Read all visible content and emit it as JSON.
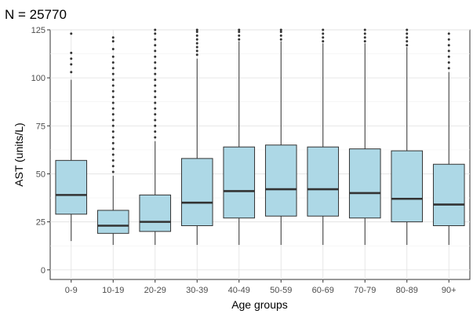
{
  "chart_data": {
    "type": "boxplot",
    "title": "N = 25770",
    "xlabel": "Age groups",
    "ylabel": "AST (units/L)",
    "ylim": [
      -5,
      125
    ],
    "yticks": [
      0,
      25,
      50,
      75,
      100,
      125
    ],
    "grid": true,
    "theme": "bw",
    "box_fill": "#add8e6",
    "box_stroke": "#333333",
    "outlier_color": "#333333",
    "categories": [
      "0-9",
      "10-19",
      "20-29",
      "30-39",
      "40-49",
      "50-59",
      "60-69",
      "70-79",
      "80-89",
      "90+"
    ],
    "boxes": [
      {
        "category": "0-9",
        "whisker_low": 15,
        "q1": 29,
        "median": 39,
        "q3": 57,
        "whisker_high": 99,
        "outliers": [
          103,
          107,
          110,
          113,
          123
        ]
      },
      {
        "category": "10-19",
        "whisker_low": 13,
        "q1": 19,
        "median": 23,
        "q3": 31,
        "whisker_high": 49,
        "outliers": [
          51,
          54,
          57,
          60,
          63,
          66,
          69,
          72,
          75,
          78,
          81,
          84,
          87,
          90,
          93,
          96,
          99,
          102,
          105,
          108,
          111,
          115,
          119,
          121
        ]
      },
      {
        "category": "20-29",
        "whisker_low": 13,
        "q1": 20,
        "median": 25,
        "q3": 39,
        "whisker_high": 67,
        "outliers": [
          69,
          72,
          75,
          78,
          81,
          84,
          87,
          90,
          93,
          96,
          99,
          102,
          105,
          108,
          111,
          114,
          117,
          120,
          123,
          125
        ]
      },
      {
        "category": "30-39",
        "whisker_low": 13,
        "q1": 23,
        "median": 35,
        "q3": 58,
        "whisker_high": 110,
        "outliers": [
          112,
          114,
          116,
          118,
          120,
          122,
          124,
          125
        ]
      },
      {
        "category": "40-49",
        "whisker_low": 13,
        "q1": 27,
        "median": 41,
        "q3": 64,
        "whisker_high": 119,
        "outliers": [
          120,
          122,
          124,
          125
        ]
      },
      {
        "category": "50-59",
        "whisker_low": 13,
        "q1": 28,
        "median": 42,
        "q3": 65,
        "whisker_high": 119,
        "outliers": [
          120,
          122,
          124,
          125
        ]
      },
      {
        "category": "60-69",
        "whisker_low": 13,
        "q1": 28,
        "median": 42,
        "q3": 64,
        "whisker_high": 118,
        "outliers": [
          119,
          121,
          123,
          125
        ]
      },
      {
        "category": "70-79",
        "whisker_low": 13,
        "q1": 27,
        "median": 40,
        "q3": 63,
        "whisker_high": 118,
        "outliers": [
          119,
          121,
          123,
          125
        ]
      },
      {
        "category": "80-89",
        "whisker_low": 13,
        "q1": 25,
        "median": 37,
        "q3": 62,
        "whisker_high": 116,
        "outliers": [
          117,
          119,
          121,
          123,
          125
        ]
      },
      {
        "category": "90+",
        "whisker_low": 13,
        "q1": 23,
        "median": 34,
        "q3": 55,
        "whisker_high": 103,
        "outliers": [
          105,
          108,
          111,
          114,
          117,
          120,
          123
        ]
      }
    ]
  }
}
